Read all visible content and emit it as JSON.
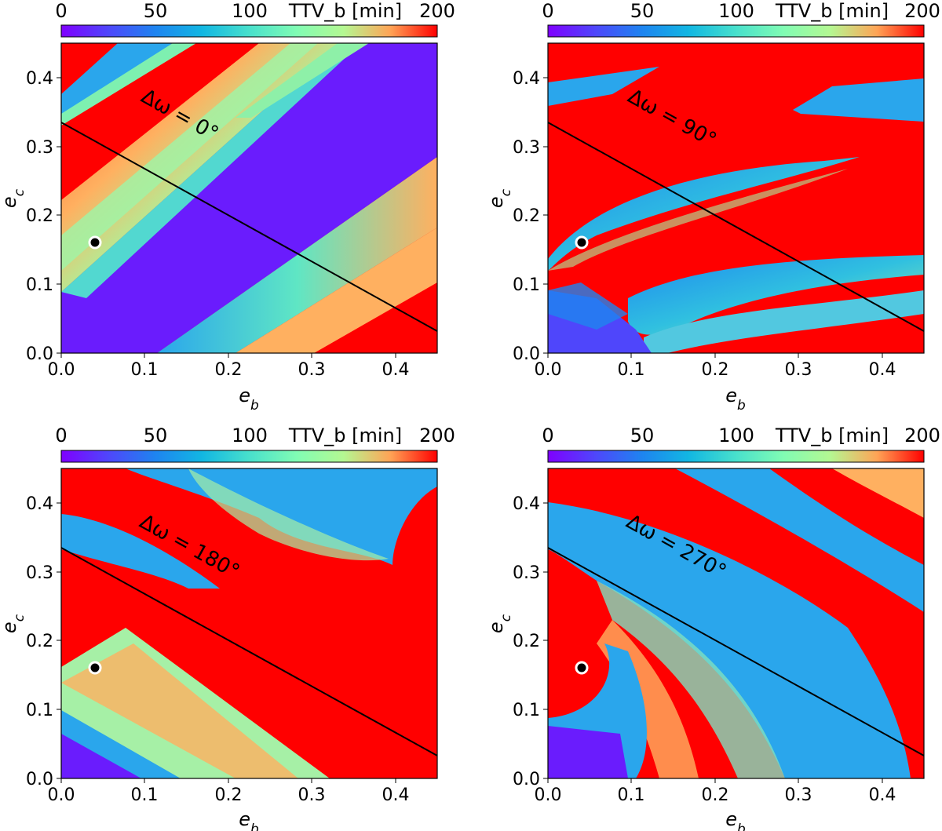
{
  "chart_data": [
    {
      "type": "heatmap",
      "annotation": "Δω = 0°",
      "xlabel": "e_b",
      "ylabel": "e_c",
      "xlim": [
        0,
        0.45
      ],
      "ylim": [
        0,
        0.45
      ],
      "xticks": [
        "0.0",
        "0.1",
        "0.2",
        "0.3",
        "0.4"
      ],
      "yticks": [
        "0.0",
        "0.1",
        "0.2",
        "0.3",
        "0.4"
      ],
      "colorbar": {
        "label": "TTV_b [min]",
        "ticks": [
          "0",
          "50",
          "100",
          "200"
        ],
        "range": [
          0,
          200
        ]
      },
      "line": {
        "x": [
          0,
          0.45
        ],
        "y": [
          0.333,
          0.033
        ]
      },
      "marker": {
        "x": 0.04,
        "y": 0.161
      }
    },
    {
      "type": "heatmap",
      "annotation": "Δω = 90°",
      "xlabel": "e_b",
      "ylabel": "e_c",
      "xlim": [
        0,
        0.45
      ],
      "ylim": [
        0,
        0.45
      ],
      "xticks": [
        "0.0",
        "0.1",
        "0.2",
        "0.3",
        "0.4"
      ],
      "yticks": [
        "0.0",
        "0.1",
        "0.2",
        "0.3",
        "0.4"
      ],
      "colorbar": {
        "label": "TTV_b [min]",
        "ticks": [
          "0",
          "50",
          "100",
          "200"
        ],
        "range": [
          0,
          200
        ]
      },
      "line": {
        "x": [
          0,
          0.45
        ],
        "y": [
          0.333,
          0.033
        ]
      },
      "marker": {
        "x": 0.04,
        "y": 0.161
      }
    },
    {
      "type": "heatmap",
      "annotation": "Δω = 180°",
      "xlabel": "e_b",
      "ylabel": "e_c",
      "xlim": [
        0,
        0.45
      ],
      "ylim": [
        0,
        0.45
      ],
      "xticks": [
        "0.0",
        "0.1",
        "0.2",
        "0.3",
        "0.4"
      ],
      "yticks": [
        "0.0",
        "0.1",
        "0.2",
        "0.3",
        "0.4"
      ],
      "colorbar": {
        "label": "TTV_b [min]",
        "ticks": [
          "0",
          "50",
          "100",
          "200"
        ],
        "range": [
          0,
          200
        ]
      },
      "line": {
        "x": [
          0,
          0.45
        ],
        "y": [
          0.333,
          0.033
        ]
      },
      "marker": {
        "x": 0.04,
        "y": 0.161
      }
    },
    {
      "type": "heatmap",
      "annotation": "Δω = 270°",
      "xlabel": "e_b",
      "ylabel": "e_c",
      "xlim": [
        0,
        0.45
      ],
      "ylim": [
        0,
        0.45
      ],
      "xticks": [
        "0.0",
        "0.1",
        "0.2",
        "0.3",
        "0.4"
      ],
      "yticks": [
        "0.0",
        "0.1",
        "0.2",
        "0.3",
        "0.4"
      ],
      "colorbar": {
        "label": "TTV_b [min]",
        "ticks": [
          "0",
          "50",
          "100",
          "200"
        ],
        "range": [
          0,
          200
        ]
      },
      "line": {
        "x": [
          0,
          0.45
        ],
        "y": [
          0.333,
          0.033
        ]
      },
      "marker": {
        "x": 0.04,
        "y": 0.161
      }
    }
  ]
}
